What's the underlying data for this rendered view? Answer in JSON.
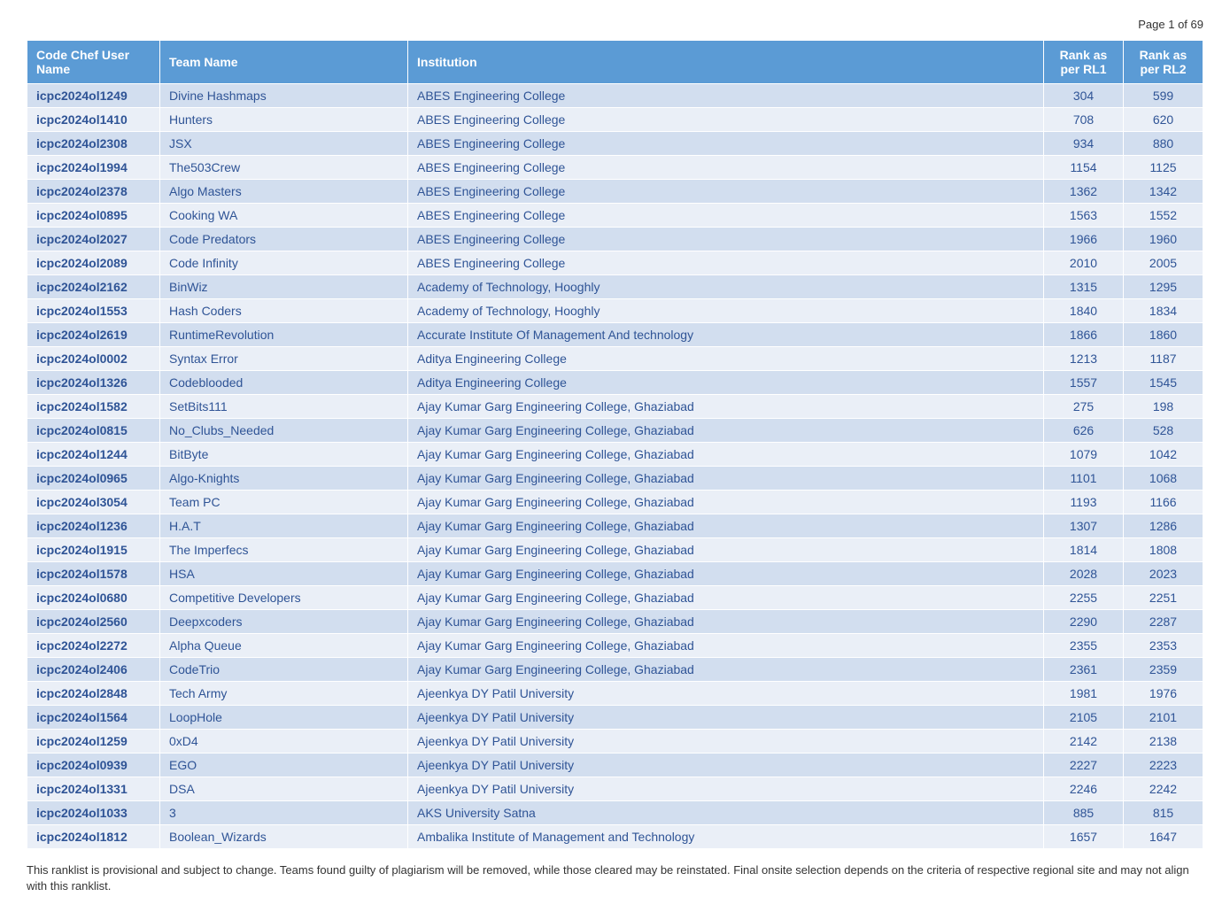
{
  "page_header": "Page 1 of 69",
  "table": {
    "columns": [
      "Code Chef User Name",
      "Team Name",
      "Institution",
      "Rank as per RL1",
      "Rank as per RL2"
    ],
    "column_widths": [
      "150px",
      "280px",
      "auto",
      "90px",
      "90px"
    ],
    "header_bg_color": "#5b9bd5",
    "header_text_color": "#ffffff",
    "row_odd_bg": "#d2deef",
    "row_even_bg": "#eaeff7",
    "cell_text_color": "#2f5496",
    "rows": [
      [
        "icpc2024ol1249",
        "Divine Hashmaps",
        "ABES Engineering College",
        "304",
        "599"
      ],
      [
        "icpc2024ol1410",
        "Hunters",
        "ABES Engineering College",
        "708",
        "620"
      ],
      [
        "icpc2024ol2308",
        "JSX",
        "ABES Engineering College",
        "934",
        "880"
      ],
      [
        "icpc2024ol1994",
        "The503Crew",
        "ABES Engineering College",
        "1154",
        "1125"
      ],
      [
        "icpc2024ol2378",
        "Algo Masters",
        "ABES Engineering College",
        "1362",
        "1342"
      ],
      [
        "icpc2024ol0895",
        "Cooking WA",
        "ABES Engineering College",
        "1563",
        "1552"
      ],
      [
        "icpc2024ol2027",
        "Code Predators",
        "ABES Engineering College",
        "1966",
        "1960"
      ],
      [
        "icpc2024ol2089",
        "Code Infinity",
        "ABES Engineering College",
        "2010",
        "2005"
      ],
      [
        "icpc2024ol2162",
        "BinWiz",
        "Academy of Technology, Hooghly",
        "1315",
        "1295"
      ],
      [
        "icpc2024ol1553",
        "Hash Coders",
        "Academy of Technology, Hooghly",
        "1840",
        "1834"
      ],
      [
        "icpc2024ol2619",
        "RuntimeRevolution",
        "Accurate Institute Of Management And technology",
        "1866",
        "1860"
      ],
      [
        "icpc2024ol0002",
        "Syntax Error",
        "Aditya Engineering College",
        "1213",
        "1187"
      ],
      [
        "icpc2024ol1326",
        "Codeblooded",
        "Aditya Engineering College",
        "1557",
        "1545"
      ],
      [
        "icpc2024ol1582",
        "SetBits111",
        "Ajay Kumar Garg Engineering College, Ghaziabad",
        "275",
        "198"
      ],
      [
        "icpc2024ol0815",
        "No_Clubs_Needed",
        "Ajay Kumar Garg Engineering College, Ghaziabad",
        "626",
        "528"
      ],
      [
        "icpc2024ol1244",
        "BitByte",
        "Ajay Kumar Garg Engineering College, Ghaziabad",
        "1079",
        "1042"
      ],
      [
        "icpc2024ol0965",
        "Algo-Knights",
        "Ajay Kumar Garg Engineering College, Ghaziabad",
        "1101",
        "1068"
      ],
      [
        "icpc2024ol3054",
        "Team PC",
        "Ajay Kumar Garg Engineering College, Ghaziabad",
        "1193",
        "1166"
      ],
      [
        "icpc2024ol1236",
        "H.A.T",
        "Ajay Kumar Garg Engineering College, Ghaziabad",
        "1307",
        "1286"
      ],
      [
        "icpc2024ol1915",
        "The Imperfecs",
        "Ajay Kumar Garg Engineering College, Ghaziabad",
        "1814",
        "1808"
      ],
      [
        "icpc2024ol1578",
        "HSA",
        "Ajay Kumar Garg Engineering College, Ghaziabad",
        "2028",
        "2023"
      ],
      [
        "icpc2024ol0680",
        "Competitive Developers",
        "Ajay Kumar Garg Engineering College, Ghaziabad",
        "2255",
        "2251"
      ],
      [
        "icpc2024ol2560",
        "Deepxcoders",
        "Ajay Kumar Garg Engineering College, Ghaziabad",
        "2290",
        "2287"
      ],
      [
        "icpc2024ol2272",
        "Alpha Queue",
        "Ajay Kumar Garg Engineering College, Ghaziabad",
        "2355",
        "2353"
      ],
      [
        "icpc2024ol2406",
        "CodeTrio",
        "Ajay Kumar Garg Engineering College, Ghaziabad",
        "2361",
        "2359"
      ],
      [
        "icpc2024ol2848",
        "Tech Army",
        "Ajeenkya DY Patil University",
        "1981",
        "1976"
      ],
      [
        "icpc2024ol1564",
        "LoopHole",
        "Ajeenkya DY Patil University",
        "2105",
        "2101"
      ],
      [
        "icpc2024ol1259",
        "0xD4",
        "Ajeenkya DY Patil University",
        "2142",
        "2138"
      ],
      [
        "icpc2024ol0939",
        "EGO",
        "Ajeenkya DY Patil University",
        "2227",
        "2223"
      ],
      [
        "icpc2024ol1331",
        "DSA",
        "Ajeenkya DY Patil University",
        "2246",
        "2242"
      ],
      [
        "icpc2024ol1033",
        "3",
        "AKS University Satna",
        "885",
        "815"
      ],
      [
        "icpc2024ol1812",
        "Boolean_Wizards",
        "Ambalika Institute of Management and Technology",
        "1657",
        "1647"
      ]
    ]
  },
  "footer_note": "This ranklist is provisional and subject to change. Teams found guilty of plagiarism will be removed, while those cleared may be reinstated. Final onsite selection depends on the criteria of respective regional site and may not align with this ranklist."
}
